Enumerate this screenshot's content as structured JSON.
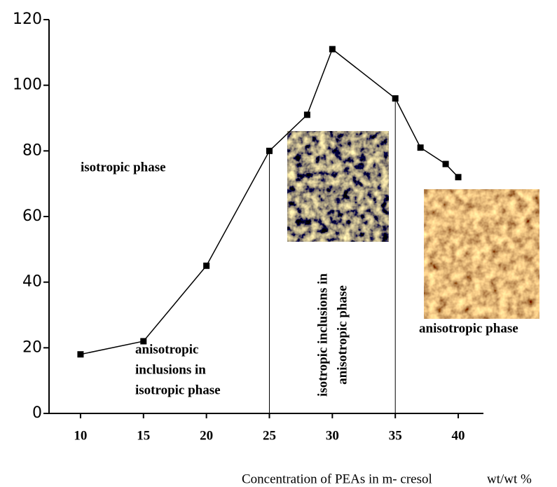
{
  "chart_data": {
    "type": "line",
    "x_label": "Concentration of PEAs in m- cresol",
    "x_unit": "wt/wt %",
    "annotations": [
      [
        "isotropic phase"
      ],
      [
        "anisotropic",
        "inclusions in",
        "isotropic phase"
      ],
      [
        "isotropic inclusions in",
        "anisotropic phase"
      ],
      [
        "anisotropic phase"
      ]
    ],
    "series": [
      {
        "color": "#000000",
        "x": [
          10,
          15,
          20,
          25,
          28,
          30,
          35,
          37,
          39,
          40
        ],
        "values": [
          18,
          22,
          45,
          80,
          91,
          111,
          96,
          81,
          76,
          72
        ]
      }
    ],
    "xlim": [
      7.5,
      42
    ],
    "xticks": [
      10,
      15,
      20,
      25,
      30,
      35,
      40
    ],
    "ylim": [
      0,
      120
    ],
    "yticks": [
      0,
      20,
      40,
      60,
      80,
      100,
      120
    ]
  }
}
